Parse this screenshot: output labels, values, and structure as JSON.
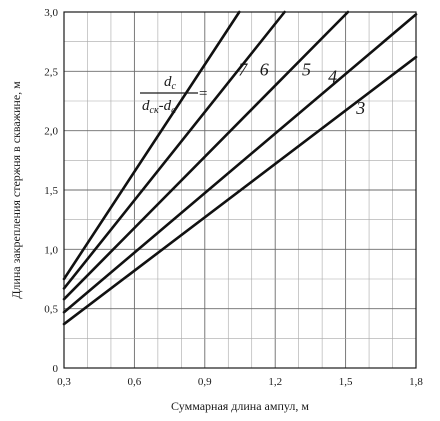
{
  "chart_data": {
    "type": "line",
    "xlabel": "Суммарная длина ампул, м",
    "ylabel": "Длина закрепления стержня в скважине, м",
    "xlim": [
      0.3,
      1.8
    ],
    "ylim": [
      0,
      3.0
    ],
    "x_ticks": [
      "0,3",
      "0,6",
      "0,9",
      "1,2",
      "1,5",
      "1,8"
    ],
    "y_ticks": [
      "0",
      "0,5",
      "1,0",
      "1,5",
      "2,0",
      "2,5",
      "3,0"
    ],
    "grid": true,
    "ratio_label": {
      "numerator": "d",
      "numerator_sub": "c",
      "denominator_a": "d",
      "denominator_a_sub": "ск",
      "minus": "-",
      "denominator_b": "d",
      "denominator_b_sub": "a",
      "equals": "="
    },
    "series": [
      {
        "name": "7",
        "x": [
          0.3,
          1.047
        ],
        "y": [
          0.75,
          3.0
        ]
      },
      {
        "name": "6",
        "x": [
          0.3,
          1.24
        ],
        "y": [
          0.67,
          3.0
        ]
      },
      {
        "name": "5",
        "x": [
          0.3,
          1.51
        ],
        "y": [
          0.58,
          3.0
        ]
      },
      {
        "name": "4",
        "x": [
          0.3,
          1.8
        ],
        "y": [
          0.47,
          2.98
        ]
      },
      {
        "name": "3",
        "x": [
          0.3,
          1.8
        ],
        "y": [
          0.37,
          2.62
        ]
      }
    ]
  }
}
